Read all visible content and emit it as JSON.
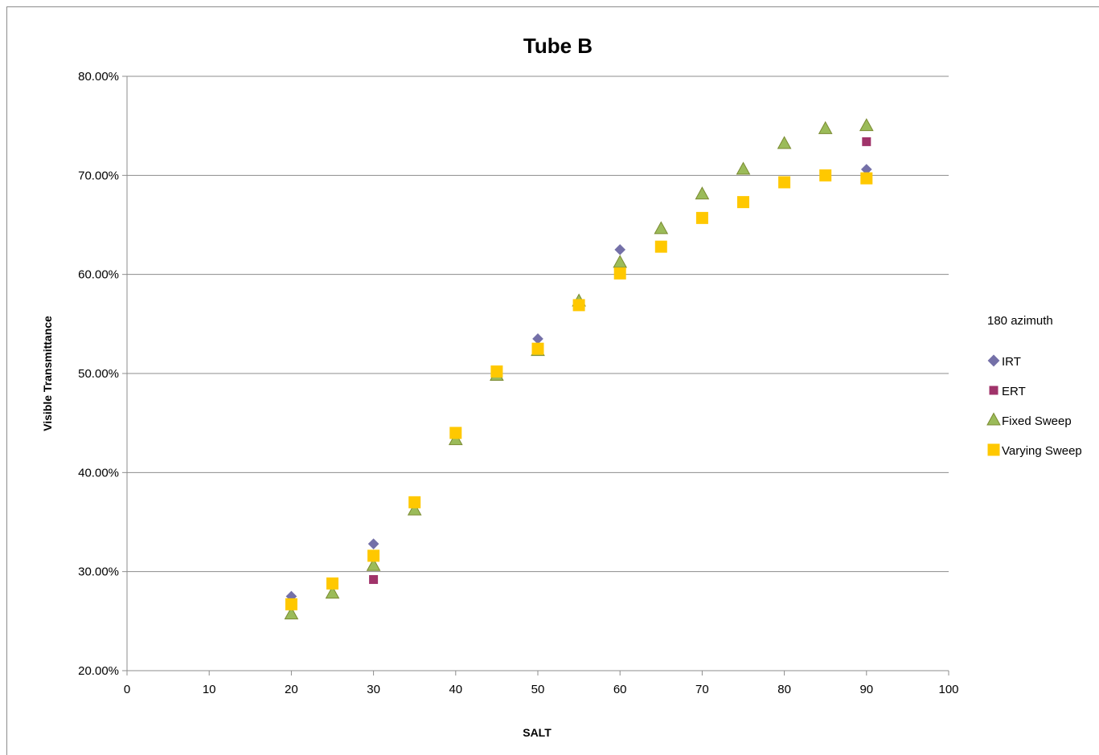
{
  "chart_data": {
    "type": "scatter",
    "title": "Tube B",
    "xlabel": "SALT",
    "ylabel": "Visible Transmittance",
    "xlim": [
      0,
      100
    ],
    "ylim": [
      0.2,
      0.8
    ],
    "x_ticks": [
      0,
      10,
      20,
      30,
      40,
      50,
      60,
      70,
      80,
      90,
      100
    ],
    "y_ticks": [
      0.2,
      0.3,
      0.4,
      0.5,
      0.6,
      0.7,
      0.8
    ],
    "y_tick_labels": [
      "20.00%",
      "30.00%",
      "40.00%",
      "50.00%",
      "60.00%",
      "70.00%",
      "80.00%"
    ],
    "grid": "horizontal",
    "legend": {
      "title": "180 azimuth",
      "placement": "right"
    },
    "series": [
      {
        "name": "IRT",
        "marker": "diamond",
        "color": "#7470a8",
        "points": [
          [
            20,
            0.275
          ],
          [
            30,
            0.328
          ],
          [
            50,
            0.535
          ],
          [
            60,
            0.625
          ],
          [
            90,
            0.706
          ]
        ]
      },
      {
        "name": "ERT",
        "marker": "square",
        "color": "#a0336a",
        "points": [
          [
            30,
            0.292
          ],
          [
            60,
            0.601
          ],
          [
            90,
            0.734
          ]
        ]
      },
      {
        "name": "Fixed Sweep",
        "marker": "triangle",
        "color": "#9bbb59",
        "stroke": "#7a8a30",
        "points": [
          [
            20,
            0.257
          ],
          [
            25,
            0.278
          ],
          [
            30,
            0.306
          ],
          [
            35,
            0.362
          ],
          [
            40,
            0.433
          ],
          [
            45,
            0.498
          ],
          [
            50,
            0.523
          ],
          [
            55,
            0.573
          ],
          [
            60,
            0.612
          ],
          [
            65,
            0.646
          ],
          [
            70,
            0.681
          ],
          [
            75,
            0.706
          ],
          [
            80,
            0.732
          ],
          [
            85,
            0.747
          ],
          [
            90,
            0.75
          ]
        ]
      },
      {
        "name": "Varying Sweep",
        "marker": "square",
        "color": "#ffc800",
        "points": [
          [
            20,
            0.267
          ],
          [
            25,
            0.288
          ],
          [
            30,
            0.316
          ],
          [
            35,
            0.37
          ],
          [
            40,
            0.44
          ],
          [
            45,
            0.502
          ],
          [
            50,
            0.525
          ],
          [
            55,
            0.569
          ],
          [
            60,
            0.601
          ],
          [
            65,
            0.628
          ],
          [
            70,
            0.657
          ],
          [
            75,
            0.673
          ],
          [
            80,
            0.693
          ],
          [
            85,
            0.7
          ],
          [
            90,
            0.697
          ]
        ]
      }
    ]
  }
}
